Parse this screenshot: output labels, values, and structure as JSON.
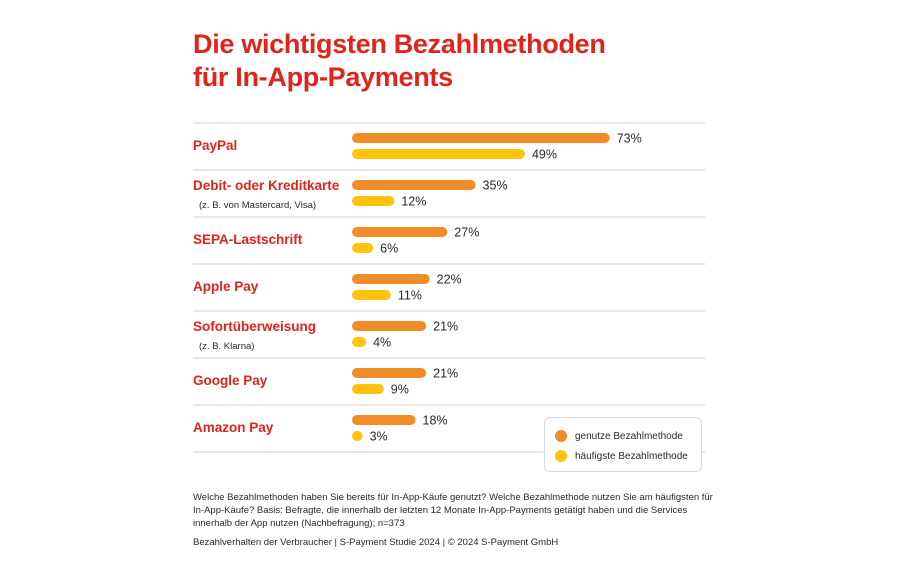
{
  "title": {
    "line1": "Die wichtigsten Bezahlmethoden",
    "line2": "für In-App-Payments"
  },
  "colors": {
    "accent": "#e2231a",
    "series_used": "#f28c28",
    "series_top": "#ffc20e",
    "divider": "#cfcfcf"
  },
  "chart_data": {
    "type": "bar",
    "orientation": "horizontal",
    "title": "Die wichtigsten Bezahlmethoden für In-App-Payments",
    "categories": [
      "PayPal",
      "Debit- oder Kreditkarte",
      "SEPA-Lastschrift",
      "Apple Pay",
      "Sofortüberweisung",
      "Google Pay",
      "Amazon Pay"
    ],
    "category_notes": [
      "",
      "(z. B. von Mastercard, Visa)",
      "",
      "",
      "(z. B. Klarna)",
      "",
      ""
    ],
    "series": [
      {
        "name": "genutze Bezahlmethode",
        "values": [
          73,
          35,
          27,
          22,
          21,
          21,
          18
        ],
        "labels": [
          "73%",
          "35%",
          "27%",
          "22%",
          "21%",
          "21%",
          "18%"
        ],
        "color": "#f28c28"
      },
      {
        "name": "häufigste Bezahlmethode",
        "values": [
          49,
          12,
          6,
          11,
          4,
          9,
          3
        ],
        "labels": [
          "49%",
          "12%",
          "6%",
          "11%",
          "4%",
          "9%",
          "3%"
        ],
        "color": "#ffc20e"
      }
    ],
    "unit": "%",
    "grid": false,
    "legend": "bottom-right"
  },
  "footer": {
    "question": "Welche Bezahlmethoden haben Sie bereits für In-App-Käufe genutzt? Welche Bezahlmethode nutzen Sie am häufigsten für In-App-Käufe? Basis: Befragte, die innerhalb der letzten 12 Monate In-App-Payments getätigt haben und die Services innerhalb der App nutzen (Nachbefragung); n=373",
    "source": "Bezahlverhalten der Verbraucher  |  S-Payment Studie 2024  |  © 2024 S-Payment GmbH"
  }
}
